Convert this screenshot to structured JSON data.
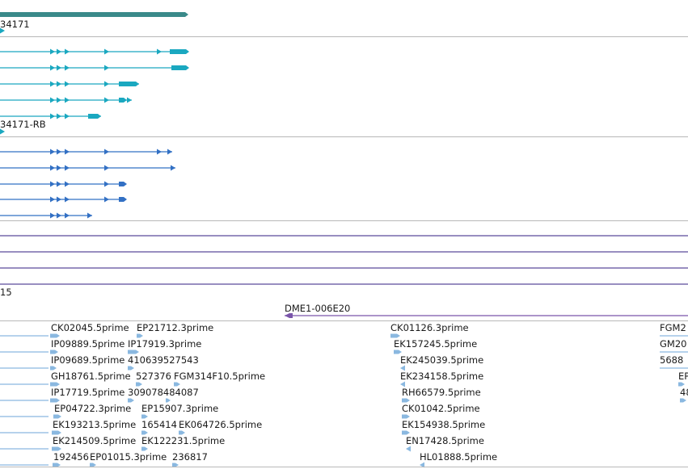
{
  "colors": {
    "gene": "#3a8a8a",
    "mrna": "#1aa8c0",
    "cds": "#3270c4",
    "match": "#5a4a9a",
    "clone": "#7a55aa",
    "est": "#8ab8e0",
    "divider": "#b8b8b8"
  },
  "tracks": {
    "gene_label": "34171",
    "mrna_label": "34171-RB",
    "match_label": "15",
    "clone_label": "DME1-006E20"
  },
  "est_group_1": {
    "rows": [
      [
        "CK02045.5prime",
        "EP21712.3prime"
      ],
      [
        "IP09889.5prime",
        "IP17919.3prime"
      ],
      [
        "IP09689.5prime",
        "410639527543"
      ],
      [
        "GH18761.5prime",
        "527376",
        "FGM314F10.5prime"
      ],
      [
        "IP17719.5prime",
        "309078484087"
      ],
      [
        "EP04722.3prime",
        "EP15907.3prime"
      ],
      [
        "EK193213.5prime",
        "165414",
        "EK064726.5prime"
      ],
      [
        "EK214509.5prime",
        "EK122231.5prime"
      ],
      [
        "192456",
        "EP01015.3prime",
        "236817"
      ]
    ]
  },
  "est_group_2": {
    "rows": [
      "CK01126.3prime",
      "EK157245.5prime",
      "EK245039.5prime",
      "EK234158.5prime",
      "RH66579.5prime",
      "CK01042.5prime",
      "EK154938.5prime",
      "EN17428.5prime",
      "HL01888.5prime"
    ]
  },
  "est_group_3": {
    "rows": [
      "FGM2",
      "GM20",
      "5688",
      "EP",
      "48"
    ]
  }
}
